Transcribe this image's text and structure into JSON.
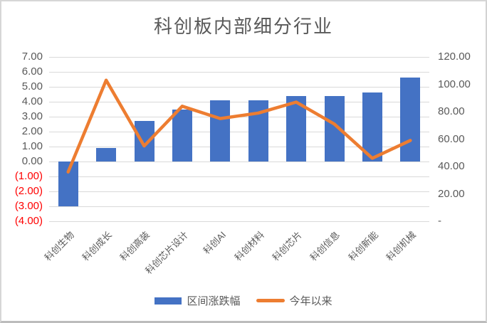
{
  "chart_data": {
    "type": "bar+line combo",
    "title": "科创板内部细分行业",
    "categories": [
      "科创生物",
      "科创成长",
      "科创高装",
      "科创芯片设计",
      "科创AI",
      "科创材料",
      "科创芯片",
      "科创信息",
      "科创新能",
      "科创机械"
    ],
    "series": [
      {
        "name": "区间涨跌幅",
        "type": "bar",
        "axis": "left",
        "color": "#4472C4",
        "values": [
          -3.0,
          0.9,
          2.7,
          3.5,
          4.1,
          4.1,
          4.4,
          4.4,
          4.6,
          5.6
        ]
      },
      {
        "name": "今年以来",
        "type": "line",
        "axis": "right",
        "color": "#ED7D31",
        "values": [
          36,
          103,
          55,
          84,
          75,
          79,
          87,
          71,
          46,
          59
        ]
      }
    ],
    "left_axis": {
      "min": -4,
      "max": 7,
      "ticks": [
        {
          "label": "7.00",
          "value": 7,
          "negative": false
        },
        {
          "label": "6.00",
          "value": 6,
          "negative": false
        },
        {
          "label": "5.00",
          "value": 5,
          "negative": false
        },
        {
          "label": "4.00",
          "value": 4,
          "negative": false
        },
        {
          "label": "3.00",
          "value": 3,
          "negative": false
        },
        {
          "label": "2.00",
          "value": 2,
          "negative": false
        },
        {
          "label": "1.00",
          "value": 1,
          "negative": false
        },
        {
          "label": "0.00",
          "value": 0,
          "negative": false
        },
        {
          "label": "(1.00)",
          "value": -1,
          "negative": true
        },
        {
          "label": "(2.00)",
          "value": -2,
          "negative": true
        },
        {
          "label": "(3.00)",
          "value": -3,
          "negative": true
        },
        {
          "label": "(4.00)",
          "value": -4,
          "negative": true
        }
      ]
    },
    "right_axis": {
      "min": 0,
      "max": 120,
      "ticks": [
        {
          "label": "120.00",
          "value": 120
        },
        {
          "label": "100.00",
          "value": 100
        },
        {
          "label": "80.00",
          "value": 80
        },
        {
          "label": "60.00",
          "value": 60
        },
        {
          "label": "40.00",
          "value": 40
        },
        {
          "label": "20.00",
          "value": 20
        },
        {
          "label": "-",
          "value": 0
        }
      ]
    },
    "grid": true,
    "legend_position": "bottom",
    "colors": {
      "bar": "#4472C4",
      "line": "#ED7D31",
      "grid": "#D9D9D9",
      "text": "#595959",
      "negative_tick": "#FF0000"
    }
  }
}
